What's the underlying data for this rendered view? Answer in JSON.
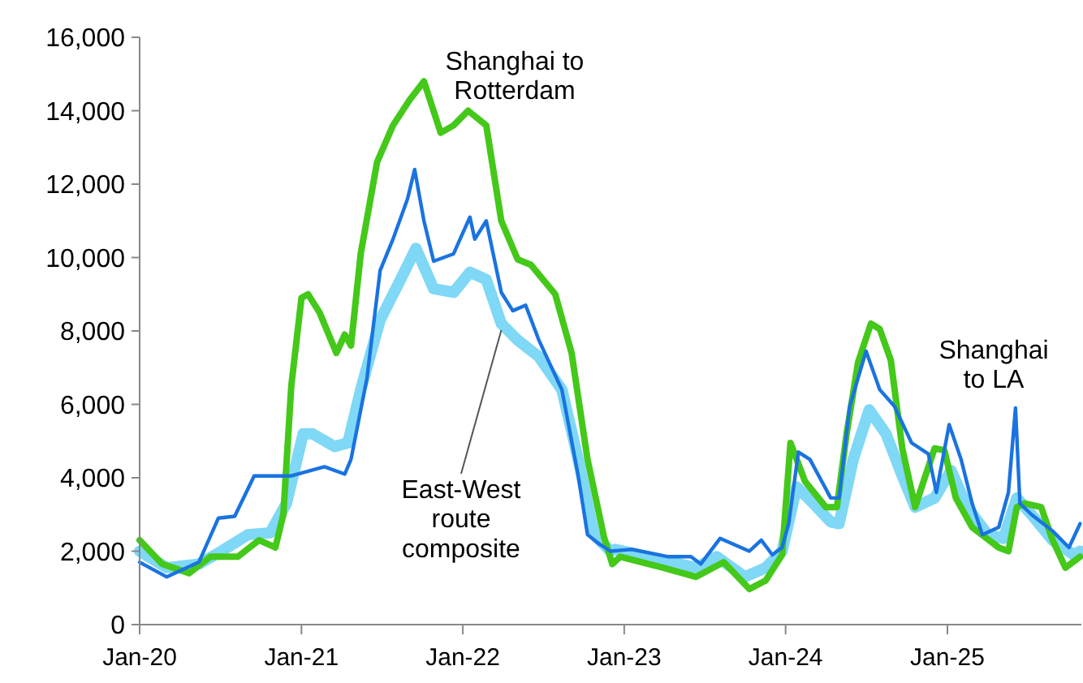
{
  "chart_data": {
    "type": "line",
    "xlim": [
      "2020-01-01",
      "2025-10-31"
    ],
    "xticks": [
      {
        "value": "2020-01-01",
        "label": "Jan-20"
      },
      {
        "value": "2021-01-01",
        "label": "Jan-21"
      },
      {
        "value": "2022-01-01",
        "label": "Jan-22"
      },
      {
        "value": "2023-01-01",
        "label": "Jan-23"
      },
      {
        "value": "2024-01-01",
        "label": "Jan-24"
      },
      {
        "value": "2025-01-01",
        "label": "Jan-25"
      }
    ],
    "ylim": [
      0,
      16000
    ],
    "yticks": [
      {
        "value": 0,
        "label": "0"
      },
      {
        "value": 2000,
        "label": "2,000"
      },
      {
        "value": 4000,
        "label": "4,000"
      },
      {
        "value": 6000,
        "label": "6,000"
      },
      {
        "value": 8000,
        "label": "8,000"
      },
      {
        "value": 10000,
        "label": "10,000"
      },
      {
        "value": 12000,
        "label": "12,000"
      },
      {
        "value": 14000,
        "label": "14,000"
      },
      {
        "value": 16000,
        "label": "16,000"
      }
    ],
    "grid": false,
    "marker": "none",
    "line_style": "solid",
    "series": [
      {
        "name": "East-West route composite",
        "color": "#7fd8f5",
        "x": [
          "2020-01-01",
          "2020-03-02",
          "2020-05-14",
          "2020-07-04",
          "2020-09-02",
          "2020-10-22",
          "2020-11-28",
          "2021-01-05",
          "2021-01-26",
          "2021-03-17",
          "2021-04-16",
          "2021-05-15",
          "2021-06-28",
          "2021-08-11",
          "2021-09-17",
          "2021-10-27",
          "2021-12-11",
          "2022-01-17",
          "2022-02-23",
          "2022-03-29",
          "2022-05-05",
          "2022-06-22",
          "2022-08-13",
          "2022-09-19",
          "2022-10-25",
          "2022-12-01",
          "2022-12-12",
          "2023-03-30",
          "2023-06-12",
          "2023-07-29",
          "2023-10-01",
          "2023-11-17",
          "2023-12-24",
          "2024-01-26",
          "2024-02-25",
          "2024-04-12",
          "2024-05-01",
          "2024-06-02",
          "2024-07-08",
          "2024-08-15",
          "2024-09-21",
          "2024-10-20",
          "2024-12-03",
          "2025-01-09",
          "2025-02-15",
          "2025-04-02",
          "2025-05-08",
          "2025-06-07",
          "2025-07-10",
          "2025-08-27",
          "2025-10-14",
          "2025-10-28"
        ],
        "values": [
          2000,
          1550,
          1650,
          2000,
          2450,
          2500,
          3300,
          5200,
          5200,
          4850,
          4950,
          6400,
          8300,
          9350,
          10250,
          9150,
          9050,
          9600,
          9400,
          8200,
          7750,
          7300,
          6400,
          4500,
          2450,
          2000,
          2050,
          1750,
          1550,
          1850,
          1300,
          1550,
          2000,
          3750,
          3400,
          2800,
          2750,
          4500,
          5850,
          5200,
          4050,
          3200,
          3450,
          4200,
          3200,
          2450,
          2350,
          3450,
          3000,
          2300,
          1900,
          2000
        ]
      },
      {
        "name": "Shanghai to Rotterdam",
        "color": "#44c81a",
        "x": [
          "2020-01-01",
          "2020-02-21",
          "2020-04-22",
          "2020-06-09",
          "2020-08-10",
          "2020-09-27",
          "2020-11-03",
          "2020-11-21",
          "2020-12-09",
          "2021-01-01",
          "2021-01-16",
          "2021-02-11",
          "2021-03-21",
          "2021-04-09",
          "2021-04-23",
          "2021-05-15",
          "2021-06-21",
          "2021-07-27",
          "2021-09-03",
          "2021-10-05",
          "2021-11-12",
          "2021-12-11",
          "2022-01-13",
          "2022-02-23",
          "2022-03-29",
          "2022-05-05",
          "2022-06-04",
          "2022-07-29",
          "2022-09-04",
          "2022-10-10",
          "2022-11-16",
          "2022-12-05",
          "2022-12-23",
          "2023-03-30",
          "2023-06-12",
          "2023-08-14",
          "2023-10-11",
          "2023-11-17",
          "2023-12-24",
          "2024-01-12",
          "2024-02-14",
          "2024-04-01",
          "2024-04-26",
          "2024-05-18",
          "2024-06-13",
          "2024-07-12",
          "2024-08-01",
          "2024-08-26",
          "2024-09-21",
          "2024-10-20",
          "2024-11-08",
          "2024-12-03",
          "2024-12-25",
          "2025-01-20",
          "2025-02-26",
          "2025-04-27",
          "2025-05-19",
          "2025-06-07",
          "2025-06-25",
          "2025-08-01",
          "2025-08-27",
          "2025-09-25",
          "2025-10-28"
        ],
        "values": [
          2300,
          1650,
          1400,
          1850,
          1850,
          2300,
          2100,
          3000,
          6500,
          8900,
          9000,
          8500,
          7400,
          7900,
          7600,
          10100,
          12600,
          13600,
          14300,
          14800,
          13400,
          13600,
          14000,
          13600,
          11000,
          9950,
          9800,
          9000,
          7400,
          4500,
          2400,
          1650,
          1850,
          1550,
          1300,
          1700,
          970,
          1200,
          1900,
          4950,
          3900,
          3200,
          3200,
          5200,
          7150,
          8200,
          8050,
          7200,
          4800,
          3200,
          3900,
          4800,
          4750,
          3450,
          2650,
          2100,
          2000,
          3200,
          3300,
          3200,
          2300,
          1550,
          1850
        ]
      },
      {
        "name": "Shanghai to LA",
        "color": "#1a73e0",
        "x": [
          "2020-01-01",
          "2020-03-02",
          "2020-05-14",
          "2020-06-27",
          "2020-08-03",
          "2020-09-16",
          "2020-12-09",
          "2021-02-22",
          "2021-04-09",
          "2021-04-23",
          "2021-05-29",
          "2021-06-28",
          "2021-07-27",
          "2021-08-29",
          "2021-09-14",
          "2021-10-05",
          "2021-10-27",
          "2021-12-11",
          "2022-01-17",
          "2022-01-28",
          "2022-02-23",
          "2022-03-29",
          "2022-04-24",
          "2022-05-23",
          "2022-06-22",
          "2022-08-13",
          "2022-09-19",
          "2022-10-10",
          "2022-11-05",
          "2022-12-01",
          "2023-01-18",
          "2023-04-11",
          "2023-06-01",
          "2023-06-23",
          "2023-08-06",
          "2023-10-11",
          "2023-11-07",
          "2023-12-02",
          "2023-12-24",
          "2024-01-08",
          "2024-01-30",
          "2024-02-25",
          "2024-04-12",
          "2024-05-01",
          "2024-05-25",
          "2024-07-01",
          "2024-08-01",
          "2024-09-03",
          "2024-10-12",
          "2024-11-19",
          "2024-12-07",
          "2025-01-05",
          "2025-02-01",
          "2025-02-26",
          "2025-03-21",
          "2025-04-27",
          "2025-05-19",
          "2025-06-04",
          "2025-06-14",
          "2025-07-10",
          "2025-08-27",
          "2025-10-03",
          "2025-10-28"
        ],
        "values": [
          1700,
          1300,
          1700,
          2900,
          2950,
          4050,
          4050,
          4300,
          4100,
          4500,
          6700,
          9650,
          10500,
          11600,
          12400,
          11000,
          9900,
          10100,
          11100,
          10500,
          11000,
          9050,
          8550,
          8700,
          7750,
          6400,
          4050,
          2450,
          2200,
          2000,
          2050,
          1850,
          1850,
          1650,
          2350,
          2000,
          2300,
          1900,
          2100,
          2750,
          4700,
          4500,
          3450,
          3450,
          5950,
          7450,
          6400,
          5950,
          4950,
          4650,
          3600,
          5450,
          4500,
          3300,
          2450,
          2650,
          3600,
          5900,
          3300,
          3000,
          2550,
          2100,
          2750
        ]
      }
    ]
  }
}
